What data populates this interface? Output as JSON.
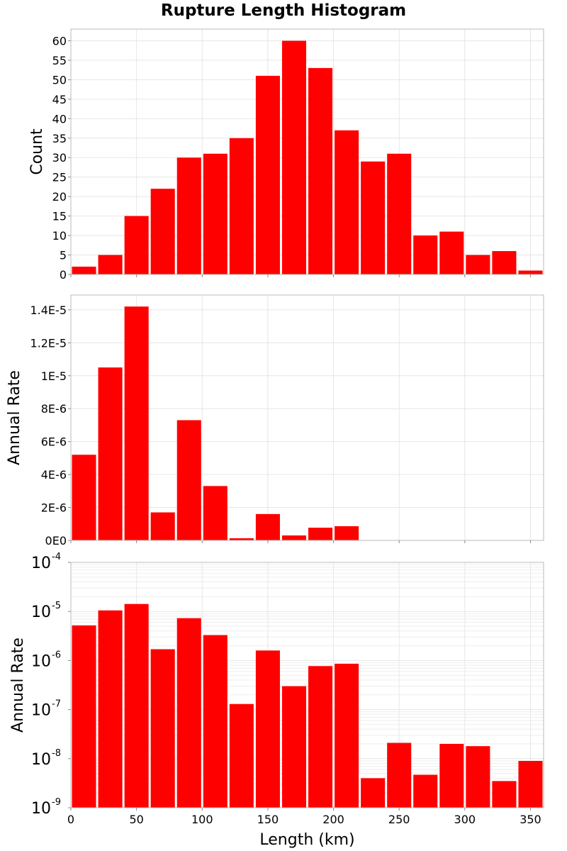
{
  "chart_data": {
    "type": "bar",
    "title": "Rupture Length Histogram",
    "xlabel": "Length (km)",
    "xlim": [
      0,
      360
    ],
    "x_ticks": [
      "0",
      "50",
      "100",
      "150",
      "200",
      "250",
      "300",
      "350"
    ],
    "bin_centers": [
      10,
      30,
      50,
      70,
      90,
      110,
      130,
      150,
      170,
      190,
      210,
      230,
      250,
      270,
      290,
      310,
      330,
      350
    ],
    "bar_color": "#ff0000",
    "panels": [
      {
        "ylabel": "Count",
        "scale": "linear",
        "ylim": [
          0,
          63
        ],
        "y_ticks": [
          0,
          5,
          10,
          15,
          20,
          25,
          30,
          35,
          40,
          45,
          50,
          55,
          60
        ],
        "y_tick_labels": [
          "0",
          "5",
          "10",
          "15",
          "20",
          "25",
          "30",
          "35",
          "40",
          "45",
          "50",
          "55",
          "60"
        ],
        "values": [
          2,
          5,
          15,
          22,
          30,
          31,
          35,
          51,
          60,
          53,
          37,
          29,
          31,
          10,
          11,
          5,
          6,
          1
        ]
      },
      {
        "ylabel": "Annual Rate",
        "scale": "linear",
        "ylim": [
          0,
          1.49e-05
        ],
        "y_ticks": [
          0,
          2e-06,
          4e-06,
          6e-06,
          8e-06,
          1e-05,
          1.2e-05,
          1.4e-05
        ],
        "y_tick_labels": [
          "0E0",
          "2E-6",
          "4E-6",
          "6E-6",
          "8E-6",
          "1E-5",
          "1.2E-5",
          "1.4E-5"
        ],
        "values": [
          5.2e-06,
          1.05e-05,
          1.42e-05,
          1.7e-06,
          7.3e-06,
          3.3e-06,
          1.3e-07,
          1.6e-06,
          3e-07,
          7.7e-07,
          8.6e-07,
          4e-09,
          2.1e-08,
          4.7e-09,
          2e-08,
          1.8e-08,
          3.5e-09,
          9e-09
        ]
      },
      {
        "ylabel": "Annual Rate",
        "scale": "log",
        "ylim": [
          1e-09,
          0.0001
        ],
        "y_ticks": [
          1e-09,
          1e-08,
          1e-07,
          1e-06,
          1e-05,
          0.0001
        ],
        "y_tick_labels": [
          {
            "base": "10",
            "exp": "-9"
          },
          {
            "base": "10",
            "exp": "-8"
          },
          {
            "base": "10",
            "exp": "-7"
          },
          {
            "base": "10",
            "exp": "-6"
          },
          {
            "base": "10",
            "exp": "-5"
          },
          {
            "base": "10",
            "exp": "-4"
          }
        ],
        "values": [
          5.2e-06,
          1.05e-05,
          1.42e-05,
          1.7e-06,
          7.3e-06,
          3.3e-06,
          1.3e-07,
          1.6e-06,
          3e-07,
          7.7e-07,
          8.6e-07,
          4e-09,
          2.1e-08,
          4.7e-09,
          2e-08,
          1.8e-08,
          3.5e-09,
          9e-09
        ]
      }
    ]
  }
}
